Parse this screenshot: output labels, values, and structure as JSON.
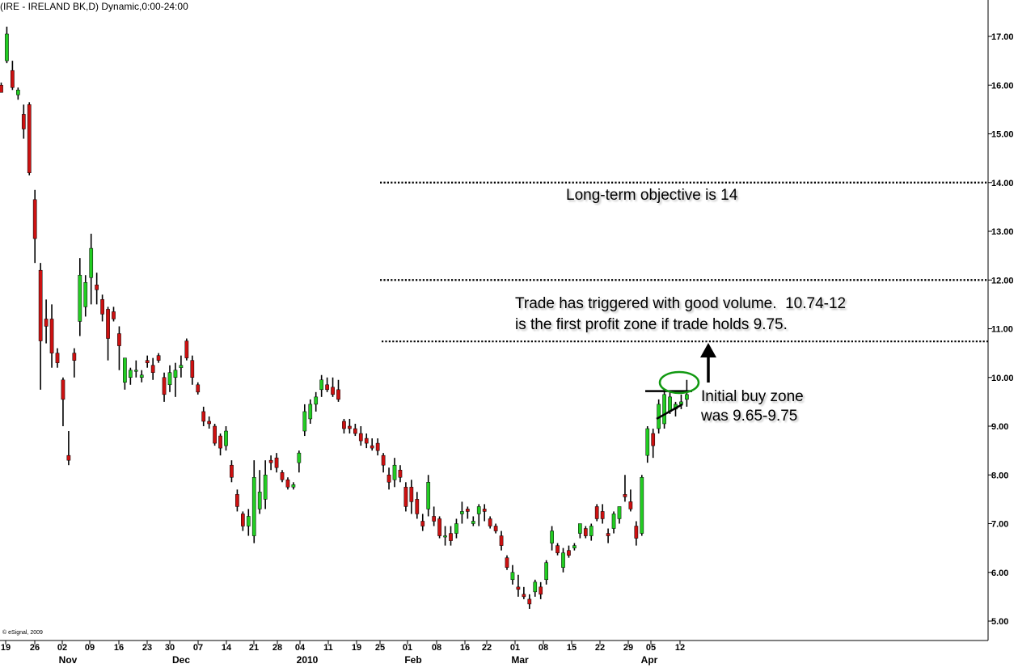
{
  "title": "(IRE - IRELAND BK,D) Dynamic,0:00-24:00",
  "copyright": "© eSignal, 2009",
  "colors": {
    "up": "#22cc22",
    "down": "#cc1111",
    "wick": "#000000",
    "ellipse": "#119911"
  },
  "annotations": {
    "long_term": "Long-term objective is 14",
    "trade_line1": "Trade has triggered with good volume.  10.74-12",
    "trade_line2": "is the first profit zone if trade holds 9.75.",
    "buy_line1": "Initial buy zone",
    "buy_line2": "was 9.65-9.75"
  },
  "chart_data": {
    "type": "candlestick",
    "ylim": [
      4.7,
      17.6
    ],
    "y_ticks": [
      "17.00",
      "16.00",
      "15.00",
      "14.00",
      "13.00",
      "12.00",
      "11.00",
      "10.00",
      "9.00",
      "8.00",
      "7.00",
      "6.00",
      "5.00"
    ],
    "x_tick_labels": [
      "19",
      "26",
      "02",
      "09",
      "16",
      "23",
      "30",
      "07",
      "14",
      "21",
      "28",
      "04",
      "11",
      "19",
      "25",
      "01",
      "08",
      "16",
      "22",
      "01",
      "08",
      "15",
      "22",
      "29",
      "05",
      "12"
    ],
    "month_labels": [
      "Nov",
      "Dec",
      "2010",
      "Feb",
      "Mar",
      "Apr"
    ],
    "reference_lines": [
      14.0,
      12.0,
      10.74
    ],
    "candles": [
      [
        16.0,
        16.05,
        15.85,
        15.85
      ],
      [
        16.5,
        17.2,
        16.45,
        17.05
      ],
      [
        16.3,
        16.5,
        15.9,
        15.95
      ],
      [
        15.8,
        15.95,
        15.7,
        15.9
      ],
      [
        15.4,
        15.6,
        14.9,
        15.1
      ],
      [
        15.6,
        15.65,
        14.15,
        14.2
      ],
      [
        13.65,
        13.85,
        12.35,
        12.85
      ],
      [
        12.2,
        12.35,
        9.75,
        10.75
      ],
      [
        11.2,
        11.6,
        10.7,
        11.05
      ],
      [
        11.2,
        11.5,
        10.2,
        10.5
      ],
      [
        10.5,
        10.6,
        10.2,
        10.3
      ],
      [
        9.95,
        10.0,
        9.0,
        9.55
      ],
      [
        8.4,
        8.9,
        8.2,
        8.3
      ],
      [
        10.5,
        10.6,
        10.0,
        10.35
      ],
      [
        11.15,
        12.45,
        10.85,
        12.1
      ],
      [
        11.45,
        12.1,
        11.25,
        11.95
      ],
      [
        12.05,
        12.95,
        11.5,
        12.65
      ],
      [
        11.9,
        12.15,
        11.5,
        11.8
      ],
      [
        11.6,
        11.7,
        11.15,
        11.3
      ],
      [
        11.4,
        11.45,
        10.35,
        10.8
      ],
      [
        11.35,
        11.45,
        11.15,
        11.2
      ],
      [
        10.9,
        11.05,
        10.15,
        10.65
      ],
      [
        9.9,
        10.4,
        9.75,
        10.4
      ],
      [
        10.0,
        10.2,
        9.85,
        10.15
      ],
      [
        10.15,
        10.35,
        10.0,
        10.15
      ],
      [
        10.0,
        10.15,
        9.9,
        10.05
      ],
      [
        10.35,
        10.45,
        10.2,
        10.3
      ],
      [
        10.25,
        10.4,
        9.95,
        10.1
      ],
      [
        10.45,
        10.5,
        10.3,
        10.35
      ],
      [
        10.0,
        10.1,
        9.5,
        9.65
      ],
      [
        9.85,
        10.25,
        9.7,
        10.1
      ],
      [
        10.0,
        10.3,
        9.6,
        10.15
      ],
      [
        10.2,
        10.45,
        10.0,
        10.25
      ],
      [
        10.75,
        10.8,
        10.35,
        10.4
      ],
      [
        10.35,
        10.45,
        9.85,
        10.0
      ],
      [
        9.85,
        9.9,
        9.65,
        9.7
      ],
      [
        9.3,
        9.4,
        9.0,
        9.1
      ],
      [
        9.1,
        9.2,
        8.95,
        9.05
      ],
      [
        9.0,
        9.05,
        8.6,
        8.65
      ],
      [
        8.8,
        8.85,
        8.4,
        8.55
      ],
      [
        8.6,
        9.0,
        8.5,
        8.9
      ],
      [
        8.2,
        8.3,
        7.85,
        7.95
      ],
      [
        7.6,
        7.7,
        7.25,
        7.35
      ],
      [
        7.2,
        7.25,
        6.85,
        6.95
      ],
      [
        6.95,
        7.3,
        6.75,
        7.15
      ],
      [
        6.75,
        8.3,
        6.6,
        7.95
      ],
      [
        7.3,
        8.1,
        7.2,
        7.65
      ],
      [
        7.5,
        8.3,
        7.3,
        8.0
      ],
      [
        8.3,
        8.4,
        8.1,
        8.25
      ],
      [
        8.35,
        8.45,
        8.05,
        8.15
      ],
      [
        8.05,
        8.1,
        7.85,
        7.9
      ],
      [
        7.9,
        7.95,
        7.7,
        7.75
      ],
      [
        7.75,
        7.85,
        7.7,
        7.8
      ],
      [
        8.25,
        8.5,
        8.05,
        8.45
      ],
      [
        8.9,
        9.45,
        8.8,
        9.3
      ],
      [
        9.15,
        9.55,
        9.05,
        9.45
      ],
      [
        9.45,
        9.7,
        9.3,
        9.6
      ],
      [
        9.75,
        10.05,
        9.6,
        9.95
      ],
      [
        9.85,
        10.0,
        9.7,
        9.75
      ],
      [
        9.8,
        10.0,
        9.6,
        9.65
      ],
      [
        9.75,
        9.95,
        9.5,
        9.55
      ],
      [
        9.1,
        9.15,
        8.85,
        8.95
      ],
      [
        9.0,
        9.15,
        8.85,
        8.95
      ],
      [
        8.95,
        9.05,
        8.8,
        8.85
      ],
      [
        8.85,
        9.0,
        8.6,
        8.7
      ],
      [
        8.75,
        8.85,
        8.55,
        8.65
      ],
      [
        8.6,
        8.75,
        8.5,
        8.55
      ],
      [
        8.65,
        8.75,
        8.4,
        8.5
      ],
      [
        8.4,
        8.45,
        8.05,
        8.2
      ],
      [
        8.0,
        8.15,
        7.7,
        7.85
      ],
      [
        7.9,
        8.35,
        7.75,
        8.2
      ],
      [
        8.1,
        8.2,
        7.85,
        7.95
      ],
      [
        7.75,
        7.85,
        7.25,
        7.35
      ],
      [
        7.75,
        7.9,
        7.2,
        7.45
      ],
      [
        7.5,
        7.65,
        7.1,
        7.2
      ],
      [
        7.05,
        7.2,
        6.85,
        6.95
      ],
      [
        7.3,
        8.0,
        7.15,
        7.85
      ],
      [
        7.15,
        7.35,
        6.95,
        7.05
      ],
      [
        7.1,
        7.15,
        6.7,
        6.75
      ],
      [
        6.75,
        6.95,
        6.55,
        6.75
      ],
      [
        6.8,
        6.95,
        6.55,
        6.65
      ],
      [
        6.8,
        7.1,
        6.7,
        7.0
      ],
      [
        7.2,
        7.45,
        7.0,
        7.25
      ],
      [
        7.3,
        7.35,
        7.1,
        7.25
      ],
      [
        7.0,
        7.15,
        6.95,
        7.05
      ],
      [
        7.2,
        7.4,
        6.95,
        7.35
      ],
      [
        7.3,
        7.4,
        7.05,
        7.25
      ],
      [
        7.1,
        7.15,
        6.9,
        6.95
      ],
      [
        6.95,
        7.0,
        6.8,
        6.85
      ],
      [
        6.75,
        6.85,
        6.45,
        6.55
      ],
      [
        6.3,
        6.35,
        6.05,
        6.1
      ],
      [
        5.85,
        6.15,
        5.75,
        6.0
      ],
      [
        5.7,
        5.95,
        5.5,
        5.65
      ],
      [
        5.55,
        5.7,
        5.45,
        5.5
      ],
      [
        5.45,
        5.55,
        5.25,
        5.35
      ],
      [
        5.6,
        5.85,
        5.5,
        5.8
      ],
      [
        5.7,
        5.8,
        5.45,
        5.55
      ],
      [
        5.85,
        6.25,
        5.75,
        6.2
      ],
      [
        6.6,
        6.95,
        6.45,
        6.85
      ],
      [
        6.55,
        6.6,
        6.35,
        6.4
      ],
      [
        6.1,
        6.5,
        6.0,
        6.4
      ],
      [
        6.45,
        6.55,
        6.3,
        6.35
      ],
      [
        6.5,
        6.6,
        6.45,
        6.55
      ],
      [
        6.8,
        7.0,
        6.7,
        7.0
      ],
      [
        6.9,
        6.95,
        6.7,
        6.75
      ],
      [
        6.75,
        7.0,
        6.65,
        6.95
      ],
      [
        7.35,
        7.4,
        7.05,
        7.1
      ],
      [
        7.25,
        7.4,
        7.0,
        7.1
      ],
      [
        6.8,
        6.9,
        6.6,
        6.75
      ],
      [
        6.9,
        7.25,
        6.8,
        7.2
      ],
      [
        7.1,
        7.35,
        7.0,
        7.35
      ],
      [
        7.6,
        8.0,
        7.45,
        7.55
      ],
      [
        7.45,
        7.7,
        7.25,
        7.3
      ],
      [
        6.95,
        7.05,
        6.55,
        6.7
      ],
      [
        6.8,
        8.0,
        6.75,
        7.95
      ],
      [
        8.4,
        9.0,
        8.25,
        8.95
      ],
      [
        8.85,
        8.95,
        8.35,
        8.6
      ],
      [
        8.95,
        9.55,
        8.85,
        9.45
      ],
      [
        9.05,
        9.75,
        8.95,
        9.65
      ],
      [
        9.3,
        9.7,
        9.25,
        9.6
      ],
      [
        9.35,
        9.5,
        9.2,
        9.45
      ],
      [
        9.45,
        9.65,
        9.35,
        9.5
      ],
      [
        9.55,
        9.95,
        9.4,
        9.65
      ]
    ]
  }
}
